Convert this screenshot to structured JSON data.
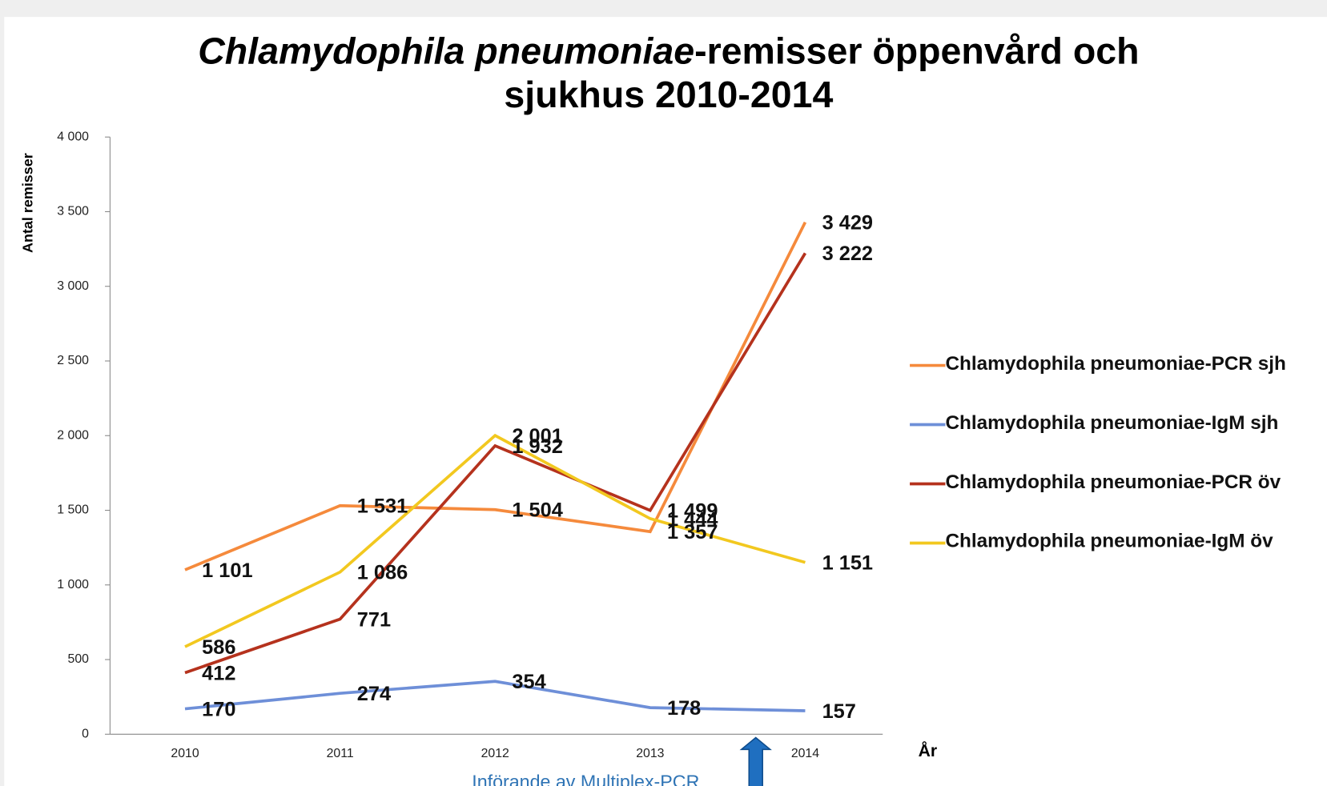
{
  "chart_data": {
    "type": "line",
    "title": [
      "Chlamydophila pneumoniae",
      "-remisser öppenvård och",
      "sjukhus 2010-2014"
    ],
    "y_label": "Antal remisser",
    "x_label": "År",
    "annotation": "Införande av Multiplex-PCR",
    "categories": [
      "2010",
      "2011",
      "2012",
      "2013",
      "2014"
    ],
    "ylim": [
      0,
      4000
    ],
    "yticks": [
      0,
      500,
      {
        "value": 1000,
        "label": "1 000"
      },
      {
        "value": 1500,
        "label": "1 500"
      },
      {
        "value": 2000,
        "label": "2 000"
      },
      {
        "value": 2500,
        "label": "2 500"
      },
      {
        "value": 3000,
        "label": "3 000"
      },
      {
        "value": 3500,
        "label": "3 500"
      },
      {
        "value": 4000,
        "label": "4 000"
      }
    ],
    "legend": "right",
    "series": [
      {
        "name": "Chlamydophila pneumoniae-PCR sjh",
        "color": "#f58a3c",
        "values": [
          1101,
          1531,
          1504,
          1357,
          3429
        ],
        "value_labels": [
          "1 101",
          "1 531",
          "1 504",
          "1 357",
          "3 429"
        ]
      },
      {
        "name": "Chlamydophila pneumoniae-IgM sjh",
        "color": "#6e8fd8",
        "values": [
          170,
          274,
          354,
          178,
          157
        ]
      },
      {
        "name": "Chlamydophila pneumoniae-PCR öv",
        "color": "#b5321d",
        "values": [
          412,
          771,
          1932,
          1499,
          3222
        ],
        "value_labels": [
          "412",
          "771",
          "1 932",
          "1 499",
          "3 222"
        ]
      },
      {
        "name": "Chlamydophila pneumoniae-IgM öv",
        "color": "#f2c81f",
        "values": [
          586,
          1086,
          2001,
          1444,
          1151
        ],
        "value_labels": [
          "586",
          "1 086",
          "2 001",
          "1 444",
          "1 151"
        ]
      }
    ]
  }
}
